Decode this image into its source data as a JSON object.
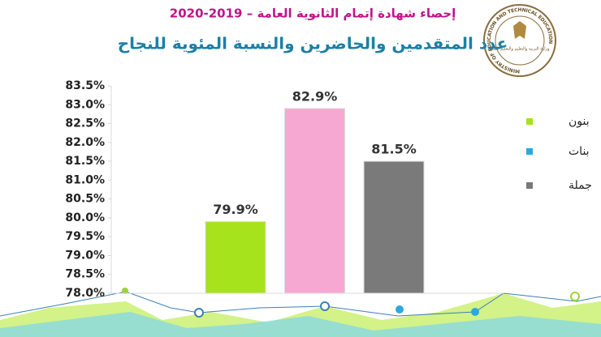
{
  "chart_data": {
    "type": "bar",
    "title": "إحصاء شهادة إتمام الثانوية العامة – 2019-2020",
    "subtitle": "عدد المتقدمين والحاضرين والنسبة المئوية للنجاح",
    "series": [
      {
        "name": "بنون",
        "color": "#a6e31c",
        "legend_color": "#a6e31c",
        "values": [
          79.9
        ],
        "value_labels": [
          "79.9%"
        ]
      },
      {
        "name": "بنات",
        "color": "#f7a8d2",
        "legend_color": "#2aa9df",
        "values": [
          82.9
        ],
        "value_labels": [
          "82.9%"
        ]
      },
      {
        "name": "جملة",
        "color": "#7a7a7a",
        "legend_color": "#7a7a7a",
        "values": [
          81.5
        ],
        "value_labels": [
          "81.5%"
        ]
      }
    ],
    "ylim": [
      78.0,
      83.5
    ],
    "yticks": [
      {
        "value": 78.0,
        "label": "78.0%"
      },
      {
        "value": 78.5,
        "label": "78.5%"
      },
      {
        "value": 79.0,
        "label": "79.0%"
      },
      {
        "value": 79.5,
        "label": "79.5%"
      },
      {
        "value": 80.0,
        "label": "80.0%"
      },
      {
        "value": 80.5,
        "label": "80.5%"
      },
      {
        "value": 81.0,
        "label": "81.0%"
      },
      {
        "value": 81.5,
        "label": "81.5%"
      },
      {
        "value": 82.0,
        "label": "82.0%"
      },
      {
        "value": 82.5,
        "label": "82.5%"
      },
      {
        "value": 83.0,
        "label": "83.0%"
      },
      {
        "value": 83.5,
        "label": "83.5%"
      }
    ],
    "grid": false,
    "legend": "right"
  },
  "logo": {
    "text_en": "MINISTRY OF EDUCATION AND TECHNICAL EDUCATION",
    "text_ar": "وزارة التربية والتعليم والتعليم الفني"
  }
}
